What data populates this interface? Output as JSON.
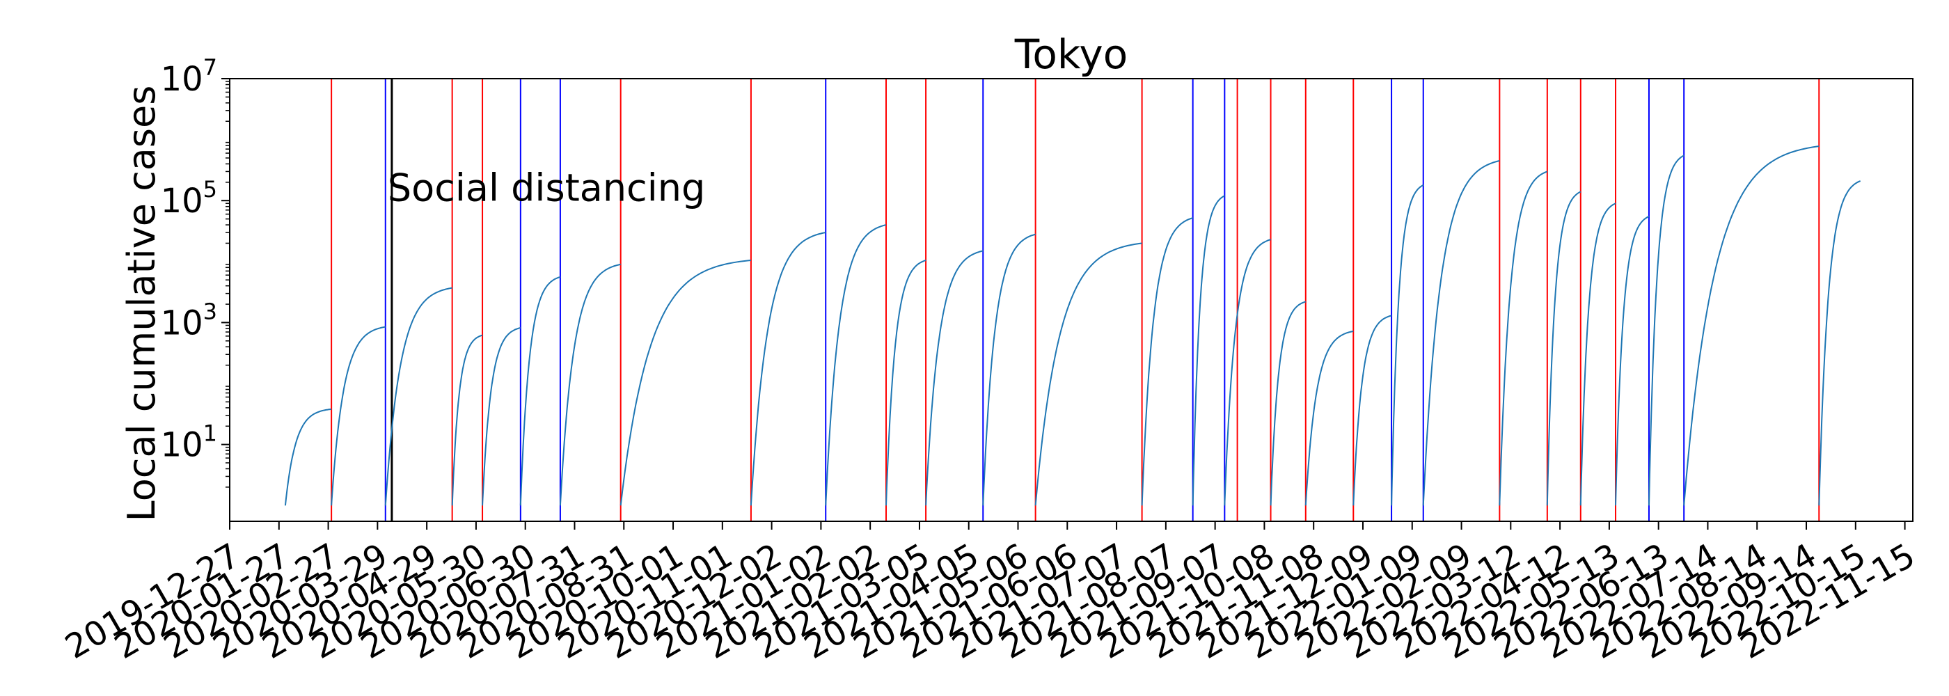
{
  "chart_data": {
    "type": "line",
    "title": "Tokyo",
    "ylabel": "Local cumulative cases",
    "xlabel": "",
    "yscale": "log",
    "ylim": [
      0.55,
      10000000
    ],
    "y_ticks": [
      {
        "base": "10",
        "exp": "1",
        "value": 10
      },
      {
        "base": "10",
        "exp": "3",
        "value": 1000
      },
      {
        "base": "10",
        "exp": "5",
        "value": 100000
      },
      {
        "base": "10",
        "exp": "7",
        "value": 10000000
      }
    ],
    "xlim": [
      "2019-12-27",
      "2022-11-20"
    ],
    "x_ticks": [
      "2019-12-27",
      "2020-01-27",
      "2020-02-27",
      "2020-03-29",
      "2020-04-29",
      "2020-05-30",
      "2020-06-30",
      "2020-07-31",
      "2020-08-31",
      "2020-10-01",
      "2020-11-01",
      "2020-12-02",
      "2021-01-02",
      "2021-02-02",
      "2021-03-05",
      "2021-04-05",
      "2021-05-06",
      "2021-06-06",
      "2021-07-07",
      "2021-08-07",
      "2021-09-07",
      "2021-10-08",
      "2021-11-08",
      "2021-12-09",
      "2022-01-09",
      "2022-02-09",
      "2022-03-12",
      "2022-04-12",
      "2022-05-13",
      "2022-06-13",
      "2022-07-14",
      "2022-08-14",
      "2022-09-14",
      "2022-10-15",
      "2022-11-15"
    ],
    "annotation": {
      "text": "Social distancing",
      "date": "2020-04-07",
      "value": 160000
    },
    "social_distancing_line": "2020-04-07",
    "red_lines": [
      "2020-02-29",
      "2020-05-15",
      "2020-06-03",
      "2020-08-29",
      "2020-11-19",
      "2021-02-12",
      "2021-03-09",
      "2021-05-17",
      "2021-07-23",
      "2021-09-21",
      "2021-10-12",
      "2021-11-03",
      "2021-12-03",
      "2022-03-05",
      "2022-04-04",
      "2022-04-25",
      "2022-05-17",
      "2022-09-22"
    ],
    "blue_lines": [
      "2020-04-03",
      "2020-06-27",
      "2020-07-22",
      "2021-01-05",
      "2021-04-14",
      "2021-08-24",
      "2021-09-13",
      "2021-12-27",
      "2022-01-16",
      "2022-06-07",
      "2022-06-29"
    ],
    "colors": {
      "curve": "#1f77b4",
      "red": "#ff0000",
      "blue": "#0000ff",
      "black": "#000000",
      "frame": "#000000"
    },
    "series": [
      {
        "name": "Local cumulative cases",
        "segments": [
          {
            "start": "2020-01-31",
            "end": "2020-02-29",
            "v0": 1,
            "v1": 38
          },
          {
            "start": "2020-02-29",
            "end": "2020-04-03",
            "v0": 1,
            "v1": 850
          },
          {
            "start": "2020-04-03",
            "end": "2020-05-15",
            "v0": 1,
            "v1": 3700
          },
          {
            "start": "2020-05-15",
            "end": "2020-06-03",
            "v0": 1,
            "v1": 620
          },
          {
            "start": "2020-06-03",
            "end": "2020-06-27",
            "v0": 1,
            "v1": 820
          },
          {
            "start": "2020-06-27",
            "end": "2020-07-22",
            "v0": 1,
            "v1": 5600
          },
          {
            "start": "2020-07-22",
            "end": "2020-08-29",
            "v0": 1,
            "v1": 9000
          },
          {
            "start": "2020-08-29",
            "end": "2020-11-19",
            "v0": 1,
            "v1": 10500
          },
          {
            "start": "2020-11-19",
            "end": "2021-01-05",
            "v0": 1,
            "v1": 30000
          },
          {
            "start": "2021-01-05",
            "end": "2021-02-12",
            "v0": 1,
            "v1": 40000
          },
          {
            "start": "2021-02-12",
            "end": "2021-03-09",
            "v0": 1,
            "v1": 10500
          },
          {
            "start": "2021-03-09",
            "end": "2021-04-14",
            "v0": 1,
            "v1": 15000
          },
          {
            "start": "2021-04-14",
            "end": "2021-05-17",
            "v0": 1,
            "v1": 28000
          },
          {
            "start": "2021-05-17",
            "end": "2021-07-23",
            "v0": 1,
            "v1": 20000
          },
          {
            "start": "2021-07-23",
            "end": "2021-08-24",
            "v0": 1,
            "v1": 52000
          },
          {
            "start": "2021-08-24",
            "end": "2021-09-13",
            "v0": 1,
            "v1": 120000
          },
          {
            "start": "2021-09-13",
            "end": "2021-10-12",
            "v0": 1,
            "v1": 23000
          },
          {
            "start": "2021-10-12",
            "end": "2021-11-03",
            "v0": 1,
            "v1": 2200
          },
          {
            "start": "2021-11-03",
            "end": "2021-12-03",
            "v0": 1,
            "v1": 720
          },
          {
            "start": "2021-12-03",
            "end": "2021-12-27",
            "v0": 1,
            "v1": 1300
          },
          {
            "start": "2021-12-27",
            "end": "2022-01-16",
            "v0": 1,
            "v1": 180000
          },
          {
            "start": "2022-01-16",
            "end": "2022-03-05",
            "v0": 1,
            "v1": 450000
          },
          {
            "start": "2022-03-05",
            "end": "2022-04-04",
            "v0": 1,
            "v1": 300000
          },
          {
            "start": "2022-04-04",
            "end": "2022-04-25",
            "v0": 1,
            "v1": 140000
          },
          {
            "start": "2022-04-25",
            "end": "2022-05-17",
            "v0": 1,
            "v1": 90000
          },
          {
            "start": "2022-05-17",
            "end": "2022-06-07",
            "v0": 1,
            "v1": 55000
          },
          {
            "start": "2022-06-07",
            "end": "2022-06-29",
            "v0": 1,
            "v1": 550000
          },
          {
            "start": "2022-06-29",
            "end": "2022-09-22",
            "v0": 1,
            "v1": 780000
          },
          {
            "start": "2022-09-22",
            "end": "2022-10-18",
            "v0": 1,
            "v1": 210000
          }
        ]
      }
    ]
  }
}
